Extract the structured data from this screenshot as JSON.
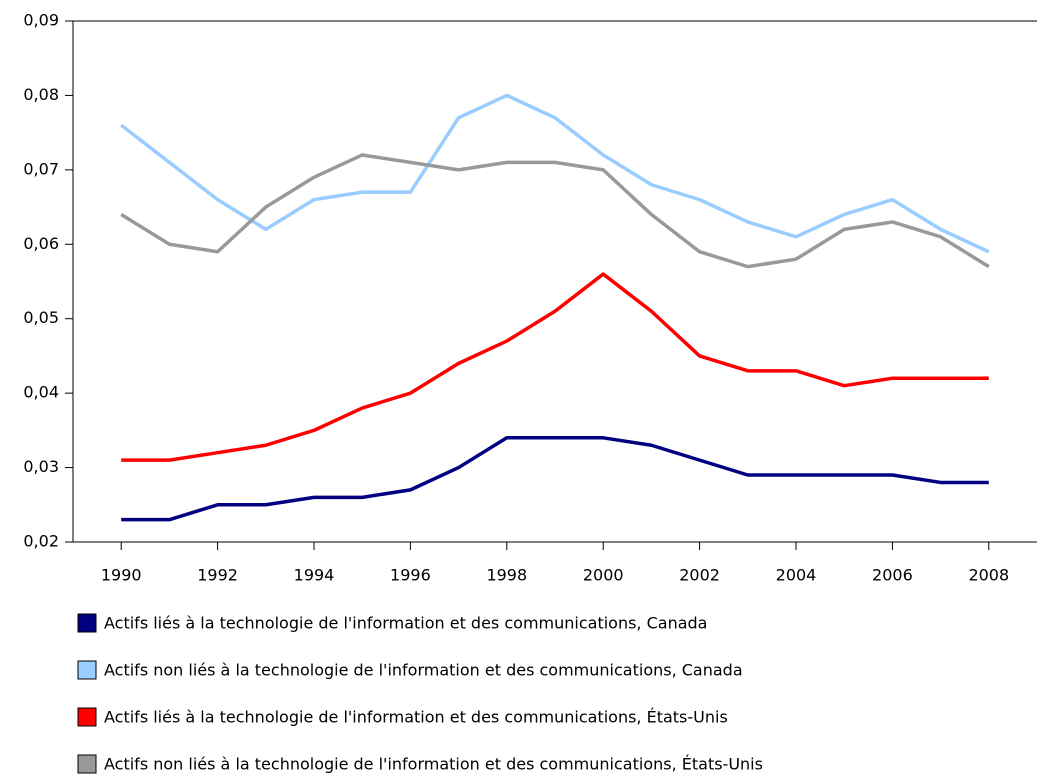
{
  "chart_data": {
    "type": "line",
    "x": [
      1990,
      1991,
      1992,
      1993,
      1994,
      1995,
      1996,
      1997,
      1998,
      1999,
      2000,
      2001,
      2002,
      2003,
      2004,
      2005,
      2006,
      2007,
      2008
    ],
    "series": [
      {
        "name": "Actifs liés à la technologie de l'information et des communications, Canada",
        "color": "#000080",
        "values": [
          0.023,
          0.023,
          0.025,
          0.025,
          0.026,
          0.026,
          0.027,
          0.03,
          0.034,
          0.034,
          0.034,
          0.033,
          0.031,
          0.029,
          0.029,
          0.029,
          0.029,
          0.028,
          0.028
        ]
      },
      {
        "name": "Actifs non liés à la technologie de l'information et des communications, Canada",
        "color": "#99ccff",
        "values": [
          0.076,
          0.071,
          0.066,
          0.062,
          0.066,
          0.067,
          0.067,
          0.077,
          0.08,
          0.077,
          0.072,
          0.068,
          0.066,
          0.063,
          0.061,
          0.064,
          0.066,
          0.062,
          0.059
        ]
      },
      {
        "name": "Actifs liés à la technologie de l'information et des communications, États-Unis",
        "color": "#ff0000",
        "values": [
          0.031,
          0.031,
          0.032,
          0.033,
          0.035,
          0.038,
          0.04,
          0.044,
          0.047,
          0.051,
          0.056,
          0.051,
          0.045,
          0.043,
          0.043,
          0.041,
          0.042,
          0.042,
          0.042
        ]
      },
      {
        "name": "Actifs non liés à la technologie de l'information et des communications, États-Unis",
        "color": "#999999",
        "values": [
          0.064,
          0.06,
          0.059,
          0.065,
          0.069,
          0.072,
          0.071,
          0.07,
          0.071,
          0.071,
          0.07,
          0.064,
          0.059,
          0.057,
          0.058,
          0.062,
          0.063,
          0.061,
          0.057
        ]
      }
    ],
    "xlim": [
      1989,
      2009
    ],
    "xticks": [
      1990,
      1992,
      1994,
      1996,
      1998,
      2000,
      2002,
      2004,
      2006,
      2008
    ],
    "ylim": [
      0.02,
      0.09
    ],
    "yticks": [
      {
        "value": 0.02,
        "label": "0,02"
      },
      {
        "value": 0.03,
        "label": "0,03"
      },
      {
        "value": 0.04,
        "label": "0,04"
      },
      {
        "value": 0.05,
        "label": "0,05"
      },
      {
        "value": 0.06,
        "label": "0,06"
      },
      {
        "value": 0.07,
        "label": "0,07"
      },
      {
        "value": 0.08,
        "label": "0,08"
      },
      {
        "value": 0.09,
        "label": "0,09"
      }
    ],
    "legend": "bottom"
  }
}
